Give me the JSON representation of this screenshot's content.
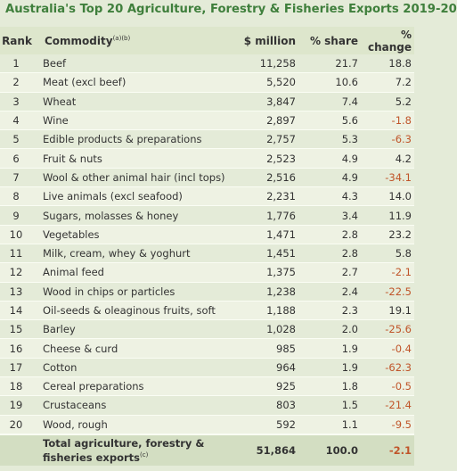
{
  "title": "Australia's Top 20 Agriculture, Forestry & Fisheries Exports 2019-20",
  "headers": {
    "rank": "Rank",
    "commodity": "Commodity",
    "commodity_sup": "(a)(b)",
    "million": "$ million",
    "share": "% share",
    "change": "% change"
  },
  "rows": [
    {
      "rank": "1",
      "commodity": "Beef",
      "million": "11,258",
      "share": "21.7",
      "change": "18.8"
    },
    {
      "rank": "2",
      "commodity": "Meat (excl beef)",
      "million": "5,520",
      "share": "10.6",
      "change": "7.2"
    },
    {
      "rank": "3",
      "commodity": "Wheat",
      "million": "3,847",
      "share": "7.4",
      "change": "5.2"
    },
    {
      "rank": "4",
      "commodity": "Wine",
      "million": "2,897",
      "share": "5.6",
      "change": "-1.8"
    },
    {
      "rank": "5",
      "commodity": "Edible products & preparations",
      "million": "2,757",
      "share": "5.3",
      "change": "-6.3"
    },
    {
      "rank": "6",
      "commodity": "Fruit & nuts",
      "million": "2,523",
      "share": "4.9",
      "change": "4.2"
    },
    {
      "rank": "7",
      "commodity": "Wool & other animal hair (incl tops)",
      "million": "2,516",
      "share": "4.9",
      "change": "-34.1"
    },
    {
      "rank": "8",
      "commodity": "Live animals (excl seafood)",
      "million": "2,231",
      "share": "4.3",
      "change": "14.0"
    },
    {
      "rank": "9",
      "commodity": "Sugars, molasses & honey",
      "million": "1,776",
      "share": "3.4",
      "change": "11.9"
    },
    {
      "rank": "10",
      "commodity": "Vegetables",
      "million": "1,471",
      "share": "2.8",
      "change": "23.2"
    },
    {
      "rank": "11",
      "commodity": "Milk, cream, whey & yoghurt",
      "million": "1,451",
      "share": "2.8",
      "change": "5.8"
    },
    {
      "rank": "12",
      "commodity": "Animal feed",
      "million": "1,375",
      "share": "2.7",
      "change": "-2.1"
    },
    {
      "rank": "13",
      "commodity": "Wood in chips or particles",
      "million": "1,238",
      "share": "2.4",
      "change": "-22.5"
    },
    {
      "rank": "14",
      "commodity": "Oil-seeds & oleaginous fruits, soft",
      "million": "1,188",
      "share": "2.3",
      "change": "19.1"
    },
    {
      "rank": "15",
      "commodity": "Barley",
      "million": "1,028",
      "share": "2.0",
      "change": "-25.6"
    },
    {
      "rank": "16",
      "commodity": "Cheese & curd",
      "million": "985",
      "share": "1.9",
      "change": "-0.4"
    },
    {
      "rank": "17",
      "commodity": "Cotton",
      "million": "964",
      "share": "1.9",
      "change": "-62.3"
    },
    {
      "rank": "18",
      "commodity": "Cereal preparations",
      "million": "925",
      "share": "1.8",
      "change": "-0.5"
    },
    {
      "rank": "19",
      "commodity": "Crustaceans",
      "million": "803",
      "share": "1.5",
      "change": "-21.4"
    },
    {
      "rank": "20",
      "commodity": "Wood, rough",
      "million": "592",
      "share": "1.1",
      "change": "-9.5"
    }
  ],
  "total": {
    "label": "Total agriculture, forestry & fisheries exports",
    "label_sup": "(c)",
    "million": "51,864",
    "share": "100.0",
    "change": "-2.1"
  },
  "colors": {
    "title": "#3f7f3c",
    "negative": "#c0552a",
    "background": "#e4ebd8"
  }
}
